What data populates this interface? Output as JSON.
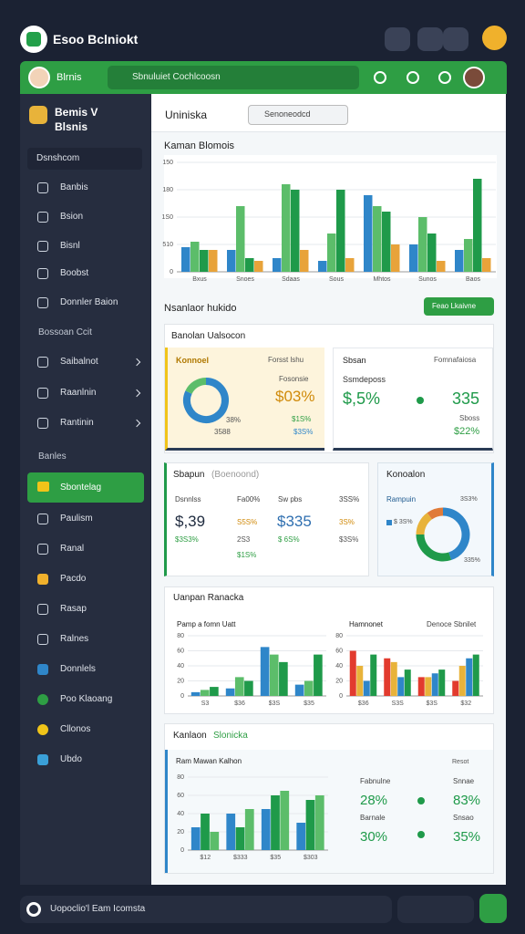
{
  "app": {
    "title": "Esoo Bclniokt"
  },
  "header": {
    "user": "Blrnis",
    "search": "Sbnuluiet Cochlcoosn"
  },
  "sidebar": {
    "brand": [
      "Bemis V",
      "Blsnis"
    ],
    "top": "Dsnshcom",
    "items": [
      "Banbis",
      "Bsion",
      "Bisnl",
      "Boobst",
      "Donnler Baion"
    ],
    "section1": "Bossoan Ccit",
    "group1": [
      "Saibalnot",
      "Raanlnin",
      "Rantinin"
    ],
    "section2": "Banles",
    "active": "Sbontelag",
    "group2": [
      "Paulism",
      "Ranal",
      "Pacdo",
      "Rasap",
      "Ralnes",
      "Donnlels",
      "Poo Klaoang",
      "Cllonos",
      "Ubdo"
    ]
  },
  "main": {
    "title": "Uniniska",
    "dropdown": "Senoneodcd",
    "section": "Nsanlaor hukido",
    "button": "Feao Lkaivne"
  },
  "charts": [
    {
      "type": "bar",
      "title": "Kaman Blomois",
      "categories": [
        "Bxus",
        "Snoes",
        "Sdaas",
        "Sous",
        "Mhtos",
        "Sunos",
        "Baos"
      ],
      "ylim": [
        0,
        200
      ],
      "yticks": [
        0,
        {
          "value": 50,
          "label": "510"
        },
        {
          "value": 100,
          "label": "1S0"
        },
        {
          "value": 150,
          "label": "180"
        },
        {
          "value": 200,
          "label": "150"
        }
      ],
      "series": [
        {
          "color": "#2f86c9",
          "values": [
            45,
            40,
            25,
            20,
            140,
            50,
            40
          ]
        },
        {
          "color": "#5cbd6a",
          "values": [
            55,
            120,
            160,
            70,
            120,
            100,
            60
          ]
        },
        {
          "color": "#1f9a4a",
          "values": [
            40,
            25,
            150,
            150,
            110,
            70,
            170
          ]
        },
        {
          "color": "#e8a33a",
          "values": [
            40,
            20,
            40,
            25,
            50,
            20,
            25
          ]
        }
      ]
    },
    {
      "type": "bar",
      "title": "Pamp a fomn Uatt",
      "categories": [
        "S3",
        "$36",
        "$3S",
        "$35"
      ],
      "ylim": [
        0,
        80
      ],
      "yticks": [
        0,
        20,
        40,
        60,
        80
      ],
      "series": [
        {
          "color": "#2f86c9",
          "values": [
            5,
            10,
            65,
            15
          ]
        },
        {
          "color": "#5cbd6a",
          "values": [
            8,
            25,
            55,
            20
          ]
        },
        {
          "color": "#1f9a4a",
          "values": [
            12,
            20,
            45,
            55
          ]
        }
      ]
    },
    {
      "type": "bar",
      "title": "Hamnonet",
      "categories": [
        "$36",
        "S3S",
        "$3S",
        "$32"
      ],
      "ylim": [
        0,
        80
      ],
      "yticks": [
        0,
        20,
        40,
        60,
        80
      ],
      "series": [
        {
          "color": "#e23b2e",
          "values": [
            60,
            50,
            25,
            20
          ]
        },
        {
          "color": "#e8b33a",
          "values": [
            40,
            45,
            25,
            40
          ]
        },
        {
          "color": "#2f86c9",
          "values": [
            20,
            25,
            30,
            50
          ]
        },
        {
          "color": "#1f9a4a",
          "values": [
            55,
            35,
            35,
            55
          ]
        }
      ]
    },
    {
      "type": "bar",
      "title": "Ram Mawan Kalhon",
      "categories": [
        "$12",
        "$333",
        "$35",
        "$303"
      ],
      "ylim": [
        0,
        80
      ],
      "yticks": [
        0,
        20,
        40,
        60,
        80
      ],
      "series": [
        {
          "color": "#2f86c9",
          "values": [
            25,
            40,
            45,
            30
          ]
        },
        {
          "color": "#1f9a4a",
          "values": [
            40,
            25,
            60,
            55
          ]
        },
        {
          "color": "#5cbd6a",
          "values": [
            20,
            45,
            65,
            60
          ]
        }
      ]
    }
  ],
  "donuts": [
    {
      "values": [
        82,
        18
      ],
      "colors": [
        "#2f86c9",
        "#5cbd6a"
      ]
    },
    {
      "values": [
        45,
        30,
        15,
        10
      ],
      "colors": [
        "#2f86c9",
        "#1f9a4a",
        "#e8b33a",
        "#e07b39"
      ]
    }
  ],
  "panel_a": {
    "title": "Banolan Ualsocon",
    "card1": {
      "title": "Konnoel",
      "note": "Forsst lshu",
      "sub": "Fosonsie",
      "value": "$03%",
      "small": [
        "38%",
        "$1S%",
        "$3S%",
        "3588"
      ]
    },
    "card2": {
      "title": "Sbsan",
      "note": "Fomnafaiosa",
      "label": "Ssmdeposs",
      "value": "$,5%",
      "value2": "335",
      "label2": "Sboss",
      "small": "$22%"
    }
  },
  "card3": {
    "title": "Sbapun",
    "tag": "(Boenoond)",
    "head": [
      "Dsnnlss",
      "Fa00%",
      "Sw pbs",
      "3SS%"
    ],
    "big": [
      "$,39",
      "$335"
    ],
    "side": [
      "S5S%",
      "3S%"
    ],
    "row": [
      "$3S3%",
      "2S3",
      "$ 6S%",
      "$3S%"
    ],
    "foot": "$1S%"
  },
  "card4": {
    "title": "Konoalon",
    "label": "Rampuin",
    "legend": "$ 3S%",
    "top": "3S3%",
    "bottom": "335%"
  },
  "panel_c": {
    "title": "Uanpan Ranacka",
    "right_note": "Denoce Sbnilet"
  },
  "panel_d": {
    "title": "Kanlaon",
    "title2": "Slonicka",
    "note": "Resot",
    "labels": [
      "Fabnulne",
      "Snnae",
      "Barnale",
      "Snsao"
    ],
    "values": [
      "28%",
      "83%",
      "30%",
      "35%"
    ]
  },
  "footer": {
    "search": "Uopoclio'l Eam Icomsta"
  }
}
